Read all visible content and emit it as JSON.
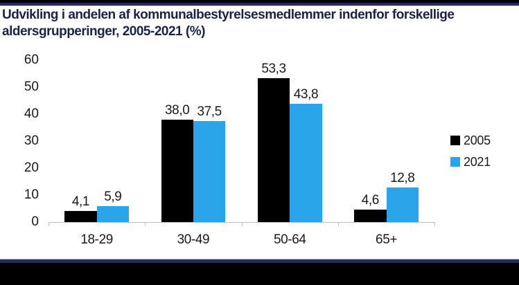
{
  "page": {
    "title": "Udvikling i andelen af kommunalbestyrelsesmedlemmer indenfor forskellige aldersgrupperinger, 2005-2021 (%)"
  },
  "colors": {
    "title_text": "#1b2344",
    "accent_navy_line": "#232a63",
    "top_bottom_bar": "#000000",
    "axis_line": "#c0c0c0",
    "label_text": "#1a1a1a",
    "series_2005": "#000000",
    "series_2021": "#2aa5e9",
    "background": "#ffffff"
  },
  "chart_data": {
    "type": "bar",
    "title": "Udvikling i andelen af kommunalbestyrelsesmedlemmer indenfor forskellige aldersgrupperinger, 2005-2021 (%)",
    "categories": [
      "18-29",
      "30-49",
      "50-64",
      "65+"
    ],
    "series": [
      {
        "name": "2005",
        "color": "#000000",
        "values": [
          4.1,
          38.0,
          53.3,
          4.6
        ],
        "labels": [
          "4,1",
          "38,0",
          "53,3",
          "4,6"
        ]
      },
      {
        "name": "2021",
        "color": "#2aa5e9",
        "values": [
          5.9,
          37.5,
          43.8,
          12.8
        ],
        "labels": [
          "5,9",
          "37,5",
          "43,8",
          "12,8"
        ]
      }
    ],
    "y_ticks": [
      0,
      10,
      20,
      30,
      40,
      50,
      60
    ],
    "ylim": [
      0,
      60
    ],
    "xlabel": "",
    "ylabel": "",
    "grid": false,
    "value_labels_shown": true,
    "decimal_separator": ",",
    "legend_position": "right"
  }
}
